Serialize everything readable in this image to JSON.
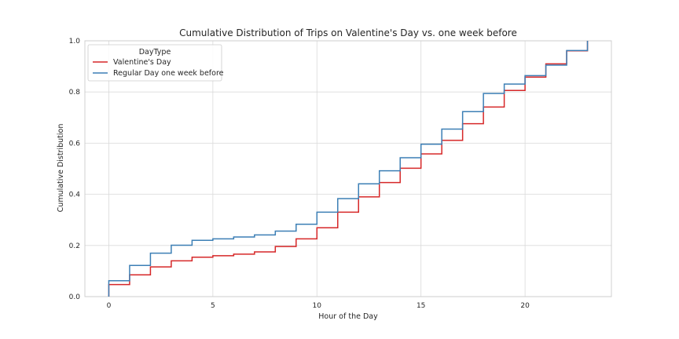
{
  "chart_data": {
    "type": "line",
    "drawstyle": "steps-post",
    "title": "Cumulative Distribution of Trips on Valentine's Day vs. one week before",
    "xlabel": "Hour of the Day",
    "ylabel": "Cumulative Distribution",
    "xlim": [
      -1.15,
      24.15
    ],
    "ylim": [
      0.0,
      1.0
    ],
    "xticks": [
      0,
      5,
      10,
      15,
      20
    ],
    "xtick_labels": [
      "0",
      "5",
      "10",
      "15",
      "20"
    ],
    "yticks": [
      0.0,
      0.2,
      0.4,
      0.6,
      0.8,
      1.0
    ],
    "ytick_labels": [
      "0.0",
      "0.2",
      "0.4",
      "0.6",
      "0.8",
      "1.0"
    ],
    "grid": true,
    "legend": {
      "title": "DayType",
      "position": "top-left"
    },
    "x": [
      0,
      1,
      2,
      3,
      4,
      5,
      6,
      7,
      8,
      9,
      10,
      11,
      12,
      13,
      14,
      15,
      16,
      17,
      18,
      19,
      20,
      21,
      22,
      23
    ],
    "series": [
      {
        "name": "Valentine's Day",
        "color": "#d62728",
        "values": [
          0.047,
          0.085,
          0.116,
          0.14,
          0.154,
          0.16,
          0.166,
          0.175,
          0.196,
          0.226,
          0.269,
          0.33,
          0.39,
          0.446,
          0.502,
          0.558,
          0.611,
          0.676,
          0.741,
          0.806,
          0.858,
          0.91,
          0.961,
          1.0
        ]
      },
      {
        "name": "Regular Day one week before",
        "color": "#3c7fb5",
        "values": [
          0.062,
          0.122,
          0.17,
          0.201,
          0.22,
          0.226,
          0.233,
          0.241,
          0.256,
          0.283,
          0.33,
          0.383,
          0.441,
          0.492,
          0.543,
          0.596,
          0.655,
          0.723,
          0.794,
          0.831,
          0.864,
          0.905,
          0.962,
          1.0
        ]
      }
    ]
  }
}
